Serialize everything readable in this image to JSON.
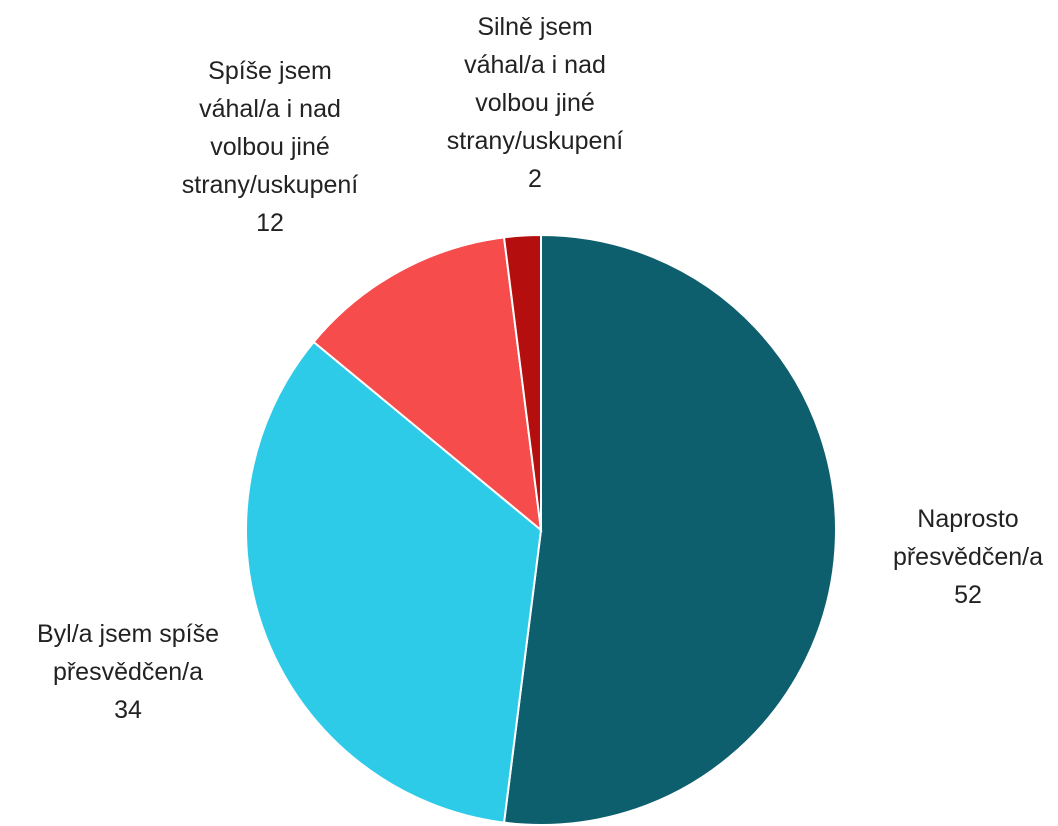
{
  "chart_data": {
    "type": "pie",
    "categories": [
      "Naprosto přesvědčen/a",
      "Byl/a jsem spíše přesvědčen/a",
      "Spíše jsem váhal/a i nad volbou jiné strany/uskupení",
      "Silně jsem váhal/a i nad volbou jiné strany/uskupení"
    ],
    "values": [
      52,
      34,
      12,
      2
    ],
    "colors": [
      "#0d5f6e",
      "#2ecbe8",
      "#f64c4c",
      "#b50e0e"
    ]
  }
}
